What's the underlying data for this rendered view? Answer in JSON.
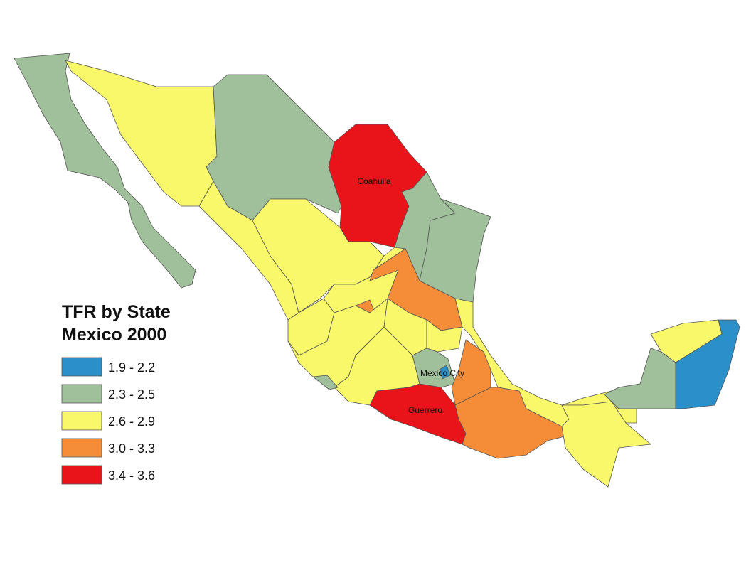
{
  "legend": {
    "title": [
      "TFR by State",
      "Mexico 2000"
    ],
    "items": [
      {
        "label": "1.9 - 2.2",
        "color": "#2b8fca"
      },
      {
        "label": "2.3 - 2.5",
        "color": "#a0bf9b"
      },
      {
        "label": "2.6 - 2.9",
        "color": "#f8f86a"
      },
      {
        "label": "3.0 - 3.3",
        "color": "#f58d38"
      },
      {
        "label": "3.4 - 3.6",
        "color": "#e8141a"
      }
    ]
  },
  "map_labels": [
    "Coahuila",
    "Mexico City",
    "Guerrero"
  ]
}
